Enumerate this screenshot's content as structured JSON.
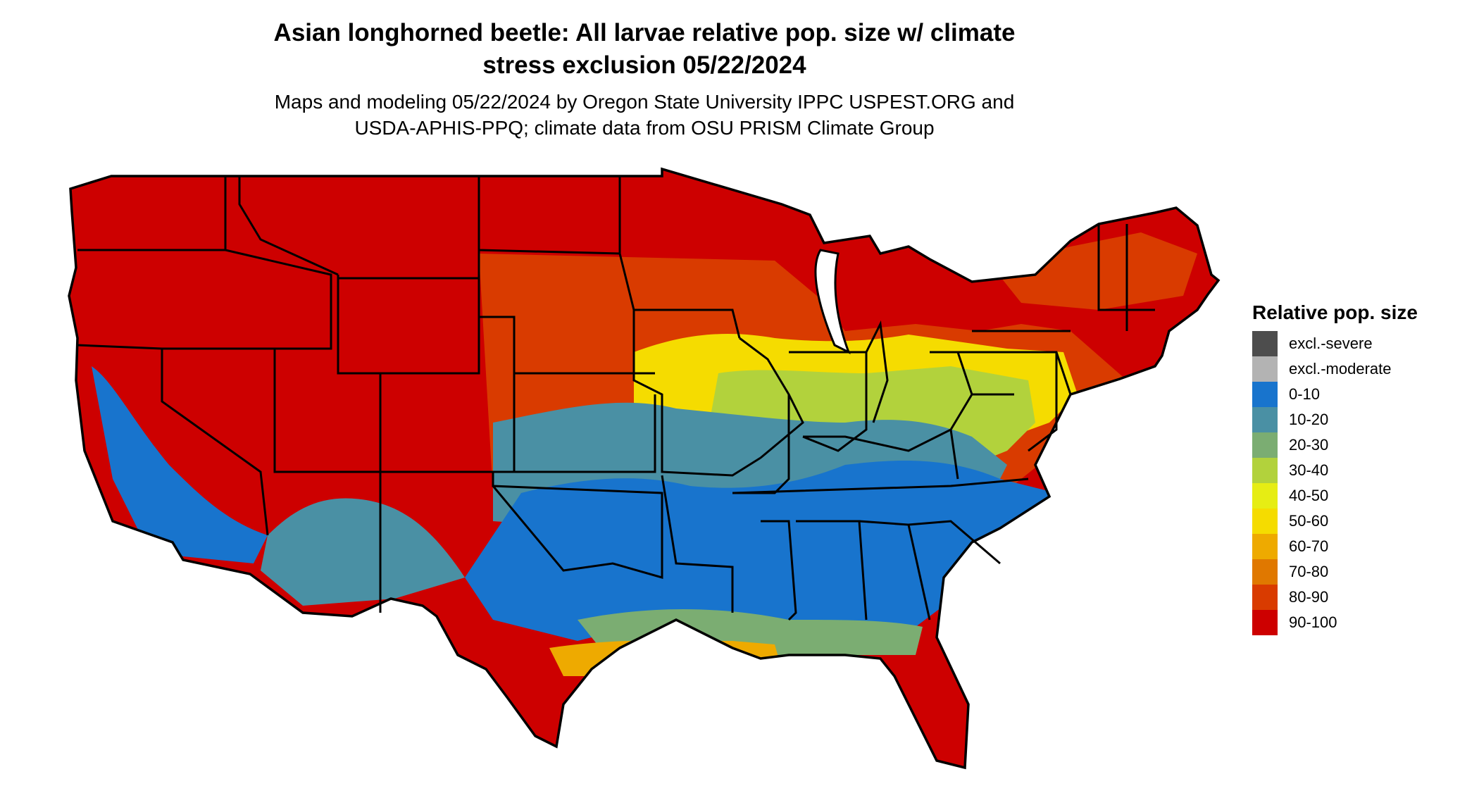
{
  "title_line1": "Asian longhorned beetle: All larvae relative pop. size w/ climate",
  "title_line2": "stress exclusion 05/22/2024",
  "subtitle_line1": "Maps and modeling 05/22/2024 by Oregon State University IPPC USPEST.ORG and",
  "subtitle_line2": "USDA-APHIS-PPQ; climate data from OSU PRISM Climate Group",
  "legend": {
    "title": "Relative pop. size",
    "items": [
      {
        "label": "excl.-severe",
        "color": "#4d4d4d"
      },
      {
        "label": "excl.-moderate",
        "color": "#b3b3b3"
      },
      {
        "label": "0-10",
        "color": "#1874cd"
      },
      {
        "label": "10-20",
        "color": "#4a90a4"
      },
      {
        "label": "20-30",
        "color": "#7bad72"
      },
      {
        "label": "30-40",
        "color": "#b2d23c"
      },
      {
        "label": "40-50",
        "color": "#e6ed14"
      },
      {
        "label": "50-60",
        "color": "#f5dc00"
      },
      {
        "label": "60-70",
        "color": "#eeaa00"
      },
      {
        "label": "70-80",
        "color": "#e07800"
      },
      {
        "label": "80-90",
        "color": "#d93b00"
      },
      {
        "label": "90-100",
        "color": "#cd0000"
      }
    ]
  }
}
